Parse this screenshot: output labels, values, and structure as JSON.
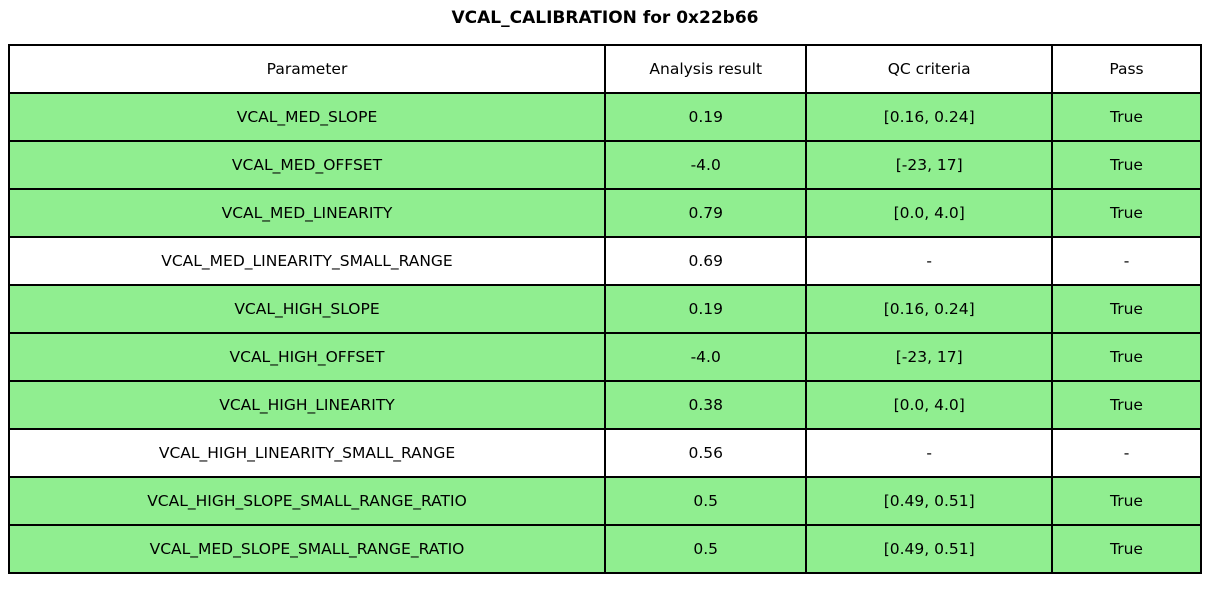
{
  "title": "VCAL_CALIBRATION for 0x22b66",
  "colors": {
    "pass_row_green": "#90EE90",
    "no_criteria_row_white": "#ffffff",
    "grid_line": "#000000"
  },
  "chart_data": {
    "type": "table",
    "title": "VCAL_CALIBRATION for 0x22b66",
    "headers": [
      "Parameter",
      "Analysis result",
      "QC criteria",
      "Pass"
    ],
    "rows": [
      {
        "parameter": "VCAL_MED_SLOPE",
        "result": "0.19",
        "criteria": "[0.16, 0.24]",
        "pass": "True",
        "highlighted": true
      },
      {
        "parameter": "VCAL_MED_OFFSET",
        "result": "-4.0",
        "criteria": "[-23, 17]",
        "pass": "True",
        "highlighted": true
      },
      {
        "parameter": "VCAL_MED_LINEARITY",
        "result": "0.79",
        "criteria": "[0.0, 4.0]",
        "pass": "True",
        "highlighted": true
      },
      {
        "parameter": "VCAL_MED_LINEARITY_SMALL_RANGE",
        "result": "0.69",
        "criteria": "-",
        "pass": "-",
        "highlighted": false
      },
      {
        "parameter": "VCAL_HIGH_SLOPE",
        "result": "0.19",
        "criteria": "[0.16, 0.24]",
        "pass": "True",
        "highlighted": true
      },
      {
        "parameter": "VCAL_HIGH_OFFSET",
        "result": "-4.0",
        "criteria": "[-23, 17]",
        "pass": "True",
        "highlighted": true
      },
      {
        "parameter": "VCAL_HIGH_LINEARITY",
        "result": "0.38",
        "criteria": "[0.0, 4.0]",
        "pass": "True",
        "highlighted": true
      },
      {
        "parameter": "VCAL_HIGH_LINEARITY_SMALL_RANGE",
        "result": "0.56",
        "criteria": "-",
        "pass": "-",
        "highlighted": false
      },
      {
        "parameter": "VCAL_HIGH_SLOPE_SMALL_RANGE_RATIO",
        "result": "0.5",
        "criteria": "[0.49, 0.51]",
        "pass": "True",
        "highlighted": true
      },
      {
        "parameter": "VCAL_MED_SLOPE_SMALL_RANGE_RATIO",
        "result": "0.5",
        "criteria": "[0.49, 0.51]",
        "pass": "True",
        "highlighted": true
      }
    ]
  }
}
